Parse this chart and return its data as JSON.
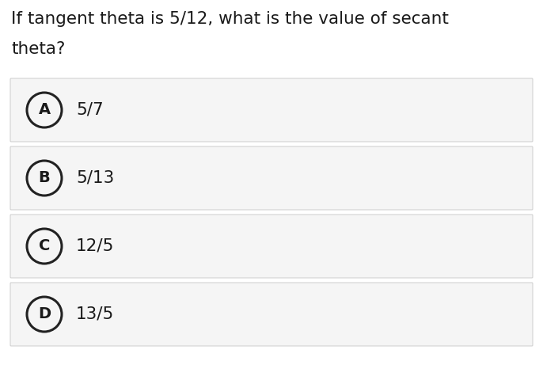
{
  "question_line1": "If tangent theta is 5/12, what is the value of secant",
  "question_line2": "theta?",
  "options": [
    {
      "letter": "A",
      "text": "5/7"
    },
    {
      "letter": "B",
      "text": "5/13"
    },
    {
      "letter": "C",
      "text": "12/5"
    },
    {
      "letter": "D",
      "text": "13/5"
    }
  ],
  "bg_color": "#ffffff",
  "option_bg_color": "#f5f5f5",
  "option_border_color": "#cccccc",
  "text_color": "#1a1a1a",
  "circle_edge_color": "#222222",
  "circle_face_color": "#f5f5f5",
  "question_fontsize": 15.5,
  "option_letter_fontsize": 14,
  "option_text_fontsize": 15.5,
  "fig_width": 6.86,
  "fig_height": 4.8,
  "dpi": 100
}
